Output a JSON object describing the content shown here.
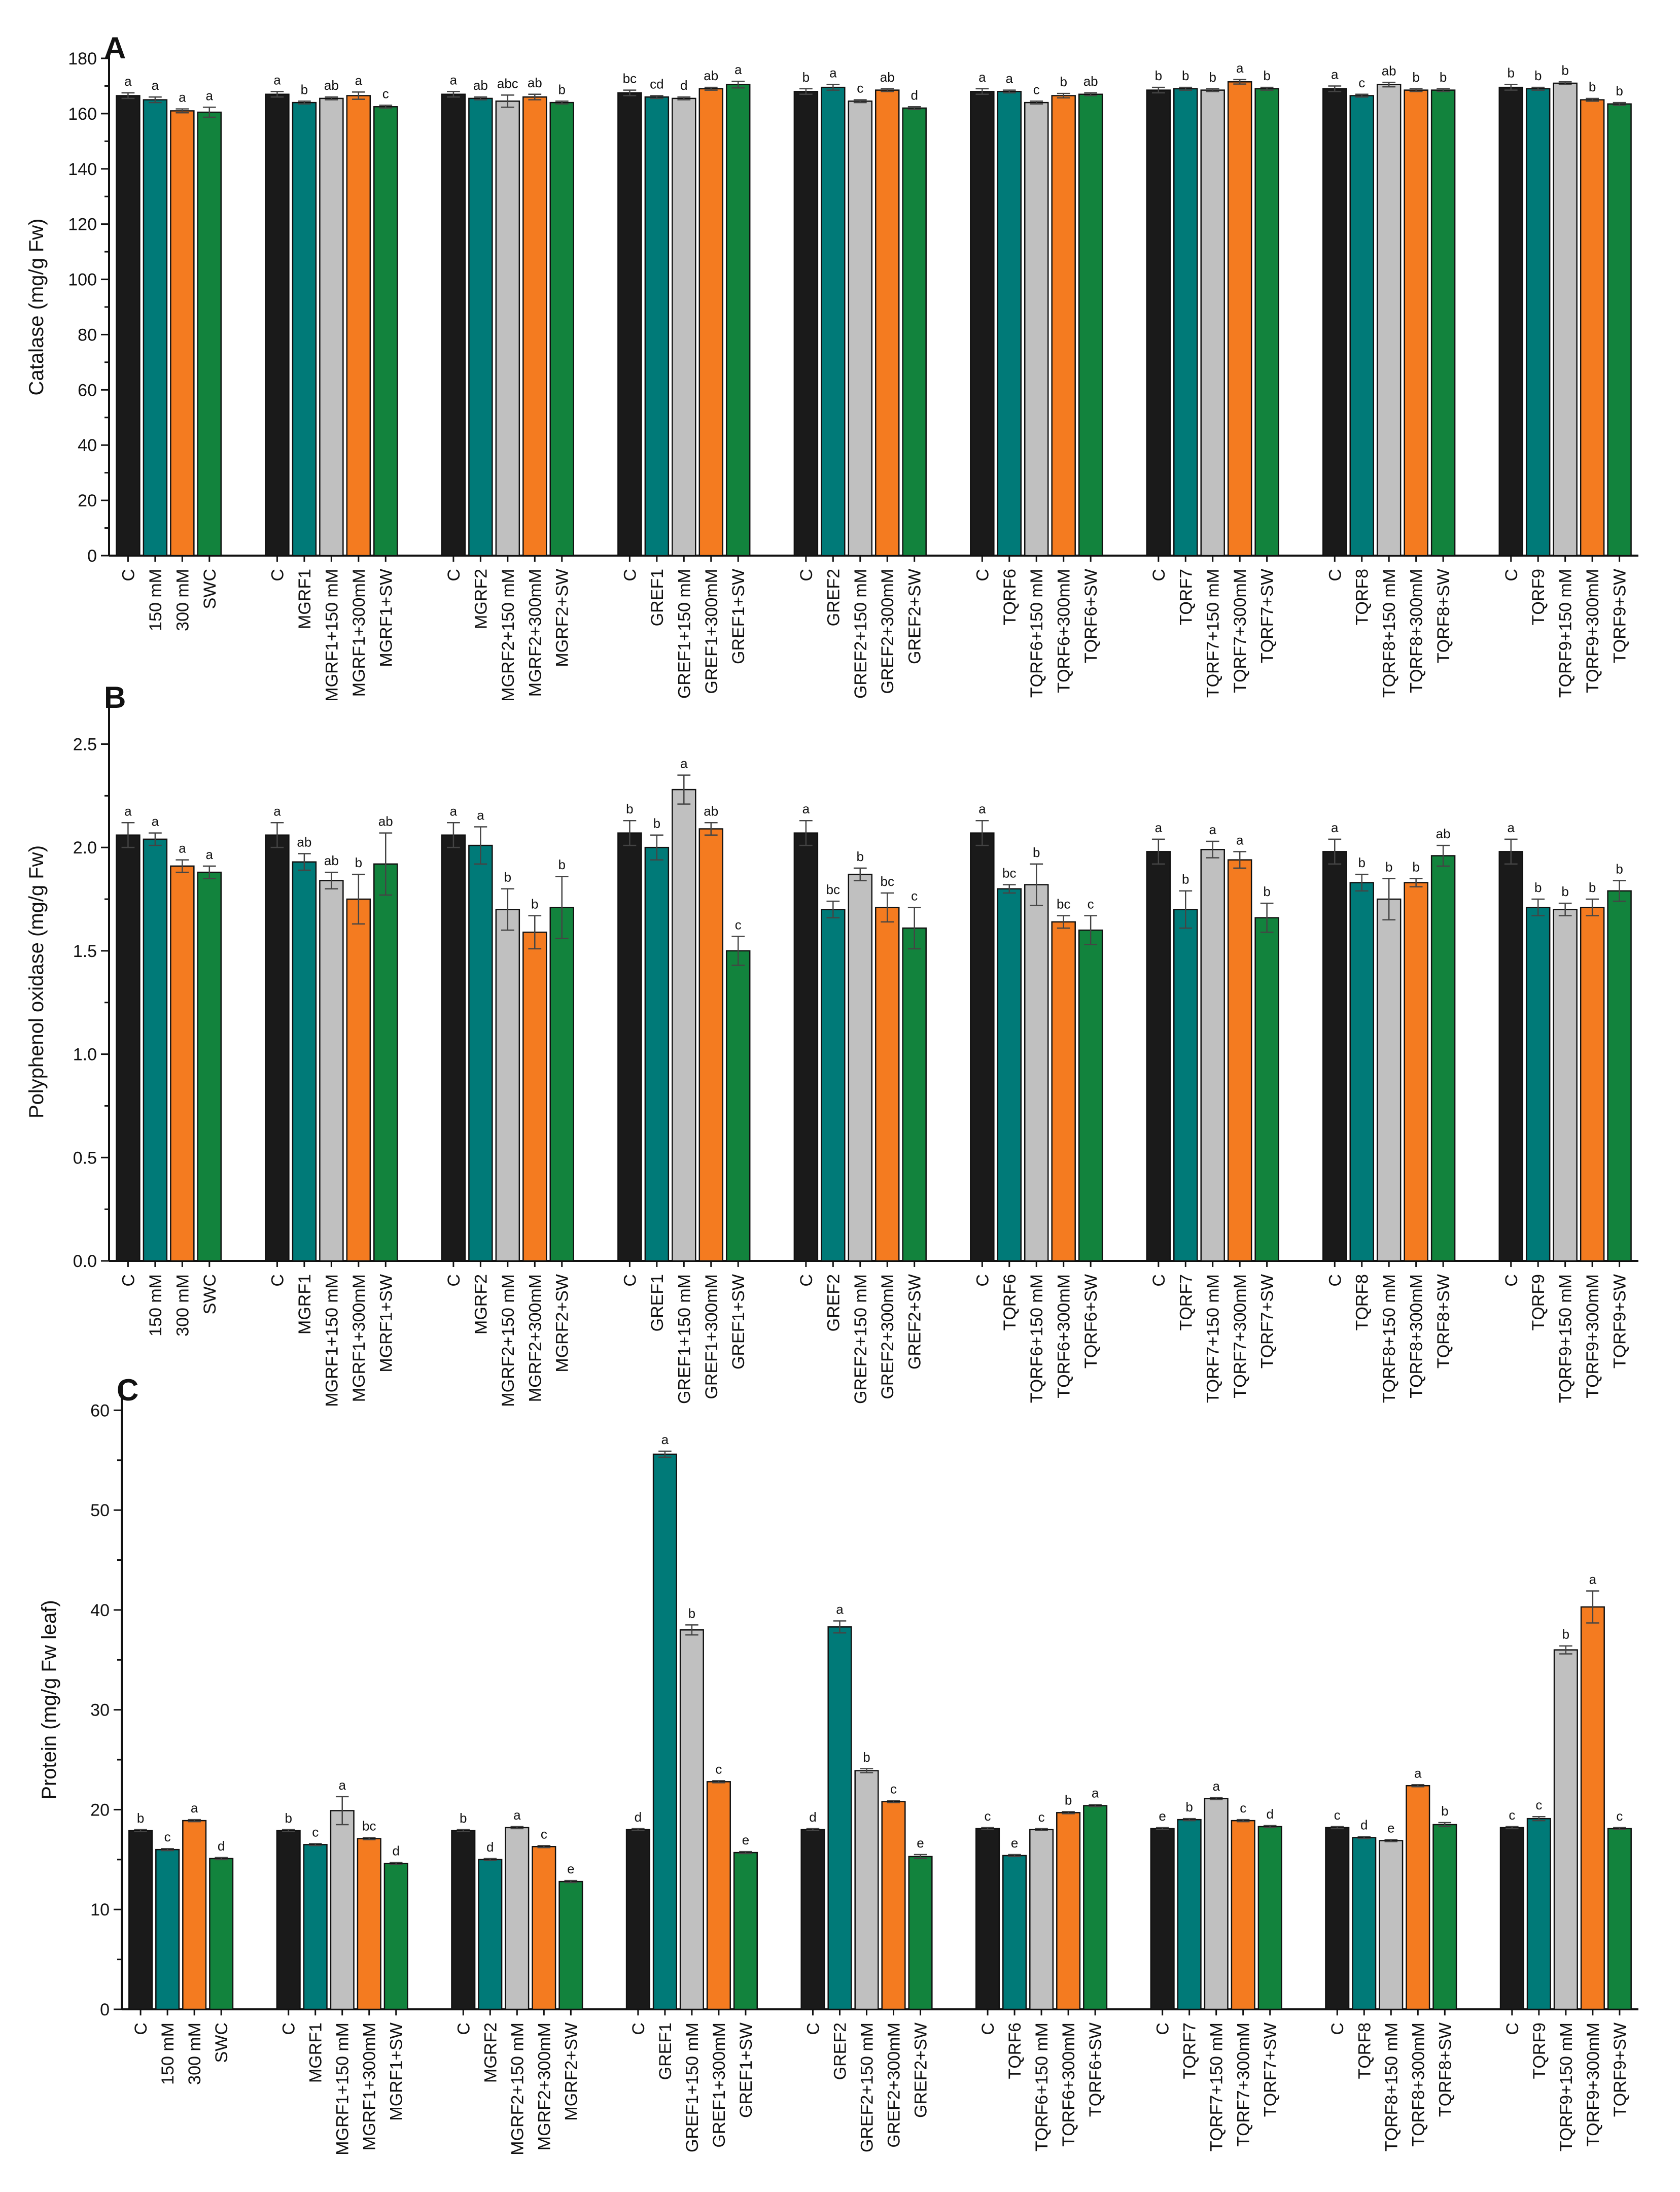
{
  "style": {
    "colors": [
      "#1a1a1a",
      "#007a78",
      "#c0c0c0",
      "#f47b20",
      "#12833d"
    ],
    "axis_color": "#111111",
    "errorbar_color": "#444444"
  },
  "chart_data": [
    {
      "type": "bar",
      "panel": "A",
      "title": "",
      "xlabel": "",
      "ylabel": "Catalase (mg/g Fw)",
      "ylim": [
        0,
        180
      ],
      "yticks": [
        0,
        20,
        40,
        60,
        80,
        100,
        120,
        140,
        160,
        180
      ],
      "ytick_labels": [
        "0",
        "20",
        "40",
        "60",
        "80",
        "100",
        "120",
        "140",
        "160",
        "180"
      ],
      "grid": false,
      "groups": [
        {
          "categories": [
            "C",
            "150 mM",
            "300 mM",
            "SWC"
          ],
          "values": [
            166.5,
            165.0,
            161.0,
            160.5
          ],
          "errors": [
            1.0,
            1.0,
            0.7,
            1.8
          ],
          "letters": [
            "a",
            "a",
            "a",
            "a"
          ],
          "colors": [
            0,
            1,
            3,
            4
          ]
        },
        {
          "categories": [
            "C",
            "MGRF1",
            "MGRF1+150 mM",
            "MGRF1+300mM",
            "MGRF1+SW"
          ],
          "values": [
            167.0,
            164.0,
            165.5,
            166.5,
            162.5
          ],
          "errors": [
            1.0,
            0.5,
            0.5,
            1.3,
            0.5
          ],
          "letters": [
            "a",
            "b",
            "ab",
            "a",
            "c"
          ],
          "colors": [
            0,
            1,
            2,
            3,
            4
          ]
        },
        {
          "categories": [
            "C",
            "MGRF2",
            "MGRF2+150 mM",
            "MGRF2+300mM",
            "MGRF2+SW"
          ],
          "values": [
            167.0,
            165.5,
            164.5,
            166.0,
            164.0
          ],
          "errors": [
            1.0,
            0.5,
            2.2,
            1.0,
            0.5
          ],
          "letters": [
            "a",
            "ab",
            "abc",
            "ab",
            "b"
          ],
          "colors": [
            0,
            1,
            2,
            3,
            4
          ]
        },
        {
          "categories": [
            "C",
            "GREF1",
            "GREF1+150 mM",
            "GREF1+300mM",
            "GREF1+SW"
          ],
          "values": [
            167.5,
            166.0,
            165.5,
            169.0,
            170.5
          ],
          "errors": [
            1.0,
            0.5,
            0.5,
            0.5,
            1.2
          ],
          "letters": [
            "bc",
            "cd",
            "d",
            "ab",
            "a"
          ],
          "colors": [
            0,
            1,
            2,
            3,
            4
          ]
        },
        {
          "categories": [
            "C",
            "GREF2",
            "GREF2+150 mM",
            "GREF2+300mM",
            "GREF2+SW"
          ],
          "values": [
            168.0,
            169.5,
            164.5,
            168.5,
            162.0
          ],
          "errors": [
            1.0,
            1.0,
            0.5,
            0.5,
            0.5
          ],
          "letters": [
            "b",
            "a",
            "c",
            "ab",
            "d"
          ],
          "colors": [
            0,
            1,
            2,
            3,
            4
          ]
        },
        {
          "categories": [
            "C",
            "TQRF6",
            "TQRF6+150 mM",
            "TQRF6+300mM",
            "TQRF6+SW"
          ],
          "values": [
            168.0,
            168.0,
            164.0,
            166.5,
            167.0
          ],
          "errors": [
            1.0,
            0.5,
            0.5,
            0.8,
            0.5
          ],
          "letters": [
            "a",
            "a",
            "c",
            "b",
            "ab"
          ],
          "colors": [
            0,
            1,
            2,
            3,
            4
          ]
        },
        {
          "categories": [
            "C",
            "TQRF7",
            "TQRF7+150 mM",
            "TQRF7+300mM",
            "TQRF7+SW"
          ],
          "values": [
            168.5,
            169.0,
            168.5,
            171.5,
            169.0
          ],
          "errors": [
            1.0,
            0.5,
            0.5,
            0.8,
            0.5
          ],
          "letters": [
            "b",
            "b",
            "b",
            "a",
            "b"
          ],
          "colors": [
            0,
            1,
            2,
            3,
            4
          ]
        },
        {
          "categories": [
            "C",
            "TQRF8",
            "TQRF8+150 mM",
            "TQRF8+300mM",
            "TQRF8+SW"
          ],
          "values": [
            169.0,
            166.5,
            170.5,
            168.5,
            168.5
          ],
          "errors": [
            1.0,
            0.5,
            0.8,
            0.5,
            0.5
          ],
          "letters": [
            "a",
            "c",
            "ab",
            "b",
            "b"
          ],
          "colors": [
            0,
            1,
            2,
            3,
            4
          ]
        },
        {
          "categories": [
            "C",
            "TQRF9",
            "TQRF9+150 mM",
            "TQRF9+300mM",
            "TQRF9+SW"
          ],
          "values": [
            169.5,
            169.0,
            171.0,
            165.0,
            163.5
          ],
          "errors": [
            1.0,
            0.5,
            0.5,
            0.5,
            0.5
          ],
          "letters": [
            "b",
            "b",
            "b",
            "b",
            "b"
          ],
          "colors": [
            0,
            1,
            2,
            3,
            4
          ]
        }
      ]
    },
    {
      "type": "bar",
      "panel": "B",
      "title": "",
      "xlabel": "",
      "ylabel": "Polyphenol oxidase (mg/g Fw)",
      "ylim": [
        0,
        2.7
      ],
      "yticks": [
        0,
        0.5,
        1.0,
        1.5,
        2.0,
        2.5
      ],
      "ytick_labels": [
        "0.0",
        "0.5",
        "1.0",
        "1.5",
        "2.0",
        "2.5"
      ],
      "grid": false,
      "groups": [
        {
          "categories": [
            "C",
            "150 mM",
            "300 mM",
            "SWC"
          ],
          "values": [
            2.06,
            2.04,
            1.91,
            1.88
          ],
          "errors": [
            0.06,
            0.03,
            0.03,
            0.03
          ],
          "letters": [
            "a",
            "a",
            "a",
            "a"
          ],
          "colors": [
            0,
            1,
            3,
            4
          ]
        },
        {
          "categories": [
            "C",
            "MGRF1",
            "MGRF1+150 mM",
            "MGRF1+300mM",
            "MGRF1+SW"
          ],
          "values": [
            2.06,
            1.93,
            1.84,
            1.75,
            1.92
          ],
          "errors": [
            0.06,
            0.04,
            0.04,
            0.12,
            0.15
          ],
          "letters": [
            "a",
            "ab",
            "ab",
            "b",
            "ab"
          ],
          "colors": [
            0,
            1,
            2,
            3,
            4
          ]
        },
        {
          "categories": [
            "C",
            "MGRF2",
            "MGRF2+150 mM",
            "MGRF2+300mM",
            "MGRF2+SW"
          ],
          "values": [
            2.06,
            2.01,
            1.7,
            1.59,
            1.71
          ],
          "errors": [
            0.06,
            0.09,
            0.1,
            0.08,
            0.15
          ],
          "letters": [
            "a",
            "a",
            "b",
            "b",
            "b"
          ],
          "colors": [
            0,
            1,
            2,
            3,
            4
          ]
        },
        {
          "categories": [
            "C",
            "GREF1",
            "GREF1+150 mM",
            "GREF1+300mM",
            "GREF1+SW"
          ],
          "values": [
            2.07,
            2.0,
            2.28,
            2.09,
            1.5
          ],
          "errors": [
            0.06,
            0.06,
            0.07,
            0.03,
            0.07
          ],
          "letters": [
            "b",
            "b",
            "a",
            "ab",
            "c"
          ],
          "colors": [
            0,
            1,
            2,
            3,
            4
          ]
        },
        {
          "categories": [
            "C",
            "GREF2",
            "GREF2+150 mM",
            "GREF2+300mM",
            "GREF2+SW"
          ],
          "values": [
            2.07,
            1.7,
            1.87,
            1.71,
            1.61
          ],
          "errors": [
            0.06,
            0.04,
            0.03,
            0.07,
            0.1
          ],
          "letters": [
            "a",
            "bc",
            "b",
            "bc",
            "c"
          ],
          "colors": [
            0,
            1,
            2,
            3,
            4
          ]
        },
        {
          "categories": [
            "C",
            "TQRF6",
            "TQRF6+150 mM",
            "TQRF6+300mM",
            "TQRF6+SW"
          ],
          "values": [
            2.07,
            1.8,
            1.82,
            1.64,
            1.6
          ],
          "errors": [
            0.06,
            0.02,
            0.1,
            0.03,
            0.07
          ],
          "letters": [
            "a",
            "bc",
            "b",
            "bc",
            "c"
          ],
          "colors": [
            0,
            1,
            2,
            3,
            4
          ]
        },
        {
          "categories": [
            "C",
            "TQRF7",
            "TQRF7+150 mM",
            "TQRF7+300mM",
            "TQRF7+SW"
          ],
          "values": [
            1.98,
            1.7,
            1.99,
            1.94,
            1.66
          ],
          "errors": [
            0.06,
            0.09,
            0.04,
            0.04,
            0.07
          ],
          "letters": [
            "a",
            "b",
            "a",
            "a",
            "b"
          ],
          "colors": [
            0,
            1,
            2,
            3,
            4
          ]
        },
        {
          "categories": [
            "C",
            "TQRF8",
            "TQRF8+150 mM",
            "TQRF8+300mM",
            "TQRF8+SW"
          ],
          "values": [
            1.98,
            1.83,
            1.75,
            1.83,
            1.96
          ],
          "errors": [
            0.06,
            0.04,
            0.1,
            0.02,
            0.05
          ],
          "letters": [
            "a",
            "b",
            "b",
            "b",
            "ab"
          ],
          "colors": [
            0,
            1,
            2,
            3,
            4
          ]
        },
        {
          "categories": [
            "C",
            "TQRF9",
            "TQRF9+150 mM",
            "TQRF9+300mM",
            "TQRF9+SW"
          ],
          "values": [
            1.98,
            1.71,
            1.7,
            1.71,
            1.79
          ],
          "errors": [
            0.06,
            0.04,
            0.03,
            0.04,
            0.05
          ],
          "letters": [
            "a",
            "b",
            "b",
            "b",
            "b"
          ],
          "colors": [
            0,
            1,
            2,
            3,
            4
          ]
        }
      ]
    },
    {
      "type": "bar",
      "panel": "C",
      "title": "",
      "xlabel": "",
      "ylabel": "Protein (mg/g Fw leaf)",
      "ylim": [
        0,
        62
      ],
      "yticks": [
        0,
        10,
        20,
        30,
        40,
        50,
        60
      ],
      "ytick_labels": [
        "0",
        "10",
        "20",
        "30",
        "40",
        "50",
        "60"
      ],
      "grid": false,
      "groups": [
        {
          "categories": [
            "C",
            "150 mM",
            "300 mM",
            "SWC"
          ],
          "values": [
            17.9,
            16.0,
            18.9,
            15.1
          ],
          "errors": [
            0.1,
            0.1,
            0.1,
            0.1
          ],
          "letters": [
            "b",
            "c",
            "a",
            "d"
          ],
          "colors": [
            0,
            1,
            3,
            4
          ]
        },
        {
          "categories": [
            "C",
            "MGRF1",
            "MGRF1+150 mM",
            "MGRF1+300mM",
            "MGRF1+SW"
          ],
          "values": [
            17.9,
            16.5,
            19.9,
            17.1,
            14.6
          ],
          "errors": [
            0.1,
            0.1,
            1.4,
            0.1,
            0.1
          ],
          "letters": [
            "b",
            "c",
            "a",
            "bc",
            "d"
          ],
          "colors": [
            0,
            1,
            2,
            3,
            4
          ]
        },
        {
          "categories": [
            "C",
            "MGRF2",
            "MGRF2+150 mM",
            "MGRF2+300mM",
            "MGRF2+SW"
          ],
          "values": [
            17.9,
            15.0,
            18.2,
            16.3,
            12.8
          ],
          "errors": [
            0.1,
            0.1,
            0.1,
            0.1,
            0.1
          ],
          "letters": [
            "b",
            "d",
            "a",
            "c",
            "e"
          ],
          "colors": [
            0,
            1,
            2,
            3,
            4
          ]
        },
        {
          "categories": [
            "C",
            "GREF1",
            "GREF1+150 mM",
            "GREF1+300mM",
            "GREF1+SW"
          ],
          "values": [
            18.0,
            55.6,
            38.0,
            22.8,
            15.7
          ],
          "errors": [
            0.1,
            0.3,
            0.5,
            0.1,
            0.1
          ],
          "letters": [
            "d",
            "a",
            "b",
            "c",
            "e"
          ],
          "colors": [
            0,
            1,
            2,
            3,
            4
          ]
        },
        {
          "categories": [
            "C",
            "GREF2",
            "GREF2+150 mM",
            "GREF2+300mM",
            "GREF2+SW"
          ],
          "values": [
            18.0,
            38.3,
            23.9,
            20.8,
            15.3
          ],
          "errors": [
            0.1,
            0.6,
            0.2,
            0.1,
            0.2
          ],
          "letters": [
            "d",
            "a",
            "b",
            "c",
            "e"
          ],
          "colors": [
            0,
            1,
            2,
            3,
            4
          ]
        },
        {
          "categories": [
            "C",
            "TQRF6",
            "TQRF6+150 mM",
            "TQRF6+300mM",
            "TQRF6+SW"
          ],
          "values": [
            18.1,
            15.4,
            18.0,
            19.7,
            20.4
          ],
          "errors": [
            0.1,
            0.1,
            0.1,
            0.1,
            0.1
          ],
          "letters": [
            "c",
            "e",
            "c",
            "b",
            "a"
          ],
          "colors": [
            0,
            1,
            2,
            3,
            4
          ]
        },
        {
          "categories": [
            "C",
            "TQRF7",
            "TQRF7+150 mM",
            "TQRF7+300mM",
            "TQRF7+SW"
          ],
          "values": [
            18.1,
            19.0,
            21.1,
            18.9,
            18.3
          ],
          "errors": [
            0.1,
            0.1,
            0.1,
            0.1,
            0.1
          ],
          "letters": [
            "e",
            "b",
            "a",
            "c",
            "d"
          ],
          "colors": [
            0,
            1,
            2,
            3,
            4
          ]
        },
        {
          "categories": [
            "C",
            "TQRF8",
            "TQRF8+150 mM",
            "TQRF8+300mM",
            "TQRF8+SW"
          ],
          "values": [
            18.2,
            17.2,
            16.9,
            22.4,
            18.5
          ],
          "errors": [
            0.1,
            0.1,
            0.1,
            0.1,
            0.2
          ],
          "letters": [
            "c",
            "d",
            "e",
            "a",
            "b"
          ],
          "colors": [
            0,
            1,
            2,
            3,
            4
          ]
        },
        {
          "categories": [
            "C",
            "TQRF9",
            "TQRF9+150 mM",
            "TQRF9+300mM",
            "TQRF9+SW"
          ],
          "values": [
            18.2,
            19.1,
            36.0,
            40.3,
            18.1
          ],
          "errors": [
            0.1,
            0.2,
            0.4,
            1.6,
            0.1
          ],
          "letters": [
            "c",
            "c",
            "b",
            "a",
            "c"
          ],
          "colors": [
            0,
            1,
            2,
            3,
            4
          ]
        }
      ]
    }
  ]
}
